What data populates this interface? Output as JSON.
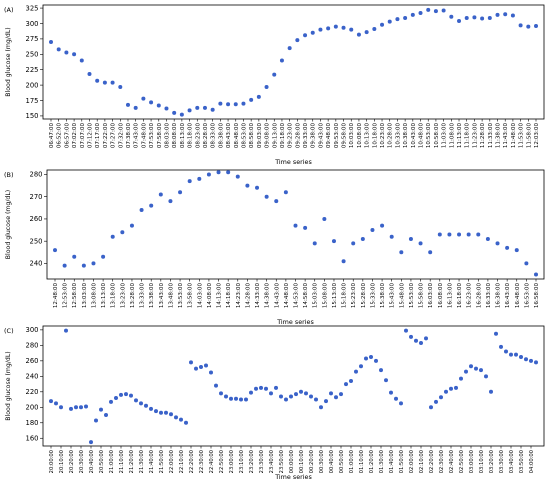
{
  "chart_data": [
    {
      "type": "scatter",
      "panel_label": "(A)",
      "xlabel": "Time series",
      "ylabel": "Blood glucose (mg/dL)",
      "ylim": [
        145,
        330
      ],
      "yticks": [
        150,
        175,
        200,
        225,
        250,
        275,
        300,
        325
      ],
      "grid": false,
      "x": [
        "06:47:00",
        "06:52:00",
        "06:57:00",
        "07:02:00",
        "07:07:00",
        "07:12:00",
        "07:17:00",
        "07:22:00",
        "07:27:00",
        "07:32:00",
        "07:38:00",
        "07:43:00",
        "07:48:00",
        "07:53:00",
        "07:58:00",
        "08:03:00",
        "08:08:00",
        "08:13:00",
        "08:18:00",
        "08:23:00",
        "08:28:00",
        "08:33:00",
        "08:38:00",
        "08:43:00",
        "08:48:00",
        "08:53:00",
        "08:58:00",
        "09:03:00",
        "09:08:00",
        "09:13:00",
        "09:18:00",
        "09:23:00",
        "09:28:00",
        "09:33:00",
        "09:38:00",
        "09:43:00",
        "09:48:00",
        "09:53:00",
        "09:58:00",
        "10:03:00",
        "10:08:00",
        "10:13:00",
        "10:18:00",
        "10:23:00",
        "10:28:00",
        "10:33:00",
        "10:38:00",
        "10:43:00",
        "10:48:00",
        "10:53:00",
        "10:58:00",
        "11:03:00",
        "11:08:00",
        "11:13:00",
        "11:18:00",
        "11:23:00",
        "11:28:00",
        "11:33:00",
        "11:38:00",
        "11:43:00",
        "11:48:00",
        "11:53:00",
        "11:58:00",
        "12:03:00"
      ],
      "xticks": [
        "06:47:00",
        "06:52:00",
        "06:57:00",
        "07:02:00",
        "07:07:00",
        "07:12:00",
        "07:17:00",
        "07:22:00",
        "07:27:00",
        "07:32:00",
        "07:38:00",
        "07:43:00",
        "07:48:00",
        "07:53:00",
        "07:58:00",
        "08:03:00",
        "08:08:00",
        "08:13:00",
        "08:18:00",
        "08:23:00",
        "08:28:00",
        "08:33:00",
        "08:38:00",
        "08:43:00",
        "08:48:00",
        "08:53:00",
        "08:58:00",
        "09:03:00",
        "09:08:00",
        "09:13:00",
        "09:18:00",
        "09:23:00",
        "09:28:00",
        "09:33:00",
        "09:38:00",
        "09:43:00",
        "09:48:00",
        "09:53:00",
        "09:58:00",
        "10:03:00",
        "10:08:00",
        "10:13:00",
        "10:18:00",
        "10:23:00",
        "10:28:00",
        "10:33:00",
        "10:38:00",
        "10:43:00",
        "10:48:00",
        "10:53:00",
        "10:58:00",
        "11:03:00",
        "11:08:00",
        "11:13:00",
        "11:18:00",
        "11:23:00",
        "11:28:00",
        "11:33:00",
        "11:38:00",
        "11:43:00",
        "11:48:00",
        "11:53:00",
        "11:58:00",
        "12:03:00"
      ],
      "y": [
        270,
        258,
        253,
        250,
        240,
        218,
        207,
        204,
        204,
        197,
        168,
        163,
        178,
        172,
        167,
        162,
        155,
        152,
        159,
        163,
        163,
        160,
        170,
        169,
        169,
        170,
        176,
        181,
        197,
        217,
        240,
        260,
        273,
        281,
        285,
        290,
        292,
        295,
        293,
        290,
        282,
        286,
        291,
        298,
        303,
        307,
        309,
        314,
        317,
        322,
        320,
        321,
        311,
        304,
        309,
        310,
        308,
        309,
        314,
        315,
        313,
        297,
        295,
        296
      ]
    },
    {
      "type": "scatter",
      "panel_label": "(B)",
      "xlabel": "Time series",
      "ylabel": "Blood glucose (mg/dL)",
      "ylim": [
        233,
        282
      ],
      "yticks": [
        240,
        250,
        260,
        270,
        280
      ],
      "grid": false,
      "x": [
        "12:48:00",
        "12:53:00",
        "12:58:00",
        "13:03:00",
        "13:08:00",
        "13:13:00",
        "13:18:00",
        "13:23:00",
        "13:28:00",
        "13:33:00",
        "13:38:00",
        "13:43:00",
        "13:48:00",
        "13:53:00",
        "13:58:00",
        "14:03:00",
        "14:08:00",
        "14:13:00",
        "14:18:00",
        "14:23:00",
        "14:28:00",
        "14:33:00",
        "14:38:00",
        "14:43:00",
        "14:48:00",
        "14:53:00",
        "14:58:00",
        "15:03:00",
        "15:08:00",
        "15:13:00",
        "15:18:00",
        "15:23:00",
        "15:28:00",
        "15:33:00",
        "15:38:00",
        "15:43:00",
        "15:48:00",
        "15:53:00",
        "15:58:00",
        "16:03:00",
        "16:08:00",
        "16:13:00",
        "16:18:00",
        "16:23:00",
        "16:28:00",
        "16:33:00",
        "16:38:00",
        "16:43:00",
        "16:48:00",
        "16:53:00",
        "16:58:00"
      ],
      "xticks": [
        "12:48:00",
        "12:53:00",
        "12:58:00",
        "13:03:00",
        "13:08:00",
        "13:13:00",
        "13:18:00",
        "13:23:00",
        "13:28:00",
        "13:33:00",
        "13:38:00",
        "13:43:00",
        "13:48:00",
        "13:53:00",
        "13:58:00",
        "14:03:00",
        "14:08:00",
        "14:13:00",
        "14:18:00",
        "14:23:00",
        "14:28:00",
        "14:33:00",
        "14:38:00",
        "14:43:00",
        "14:48:00",
        "14:53:00",
        "14:58:00",
        "15:03:00",
        "15:08:00",
        "15:13:00",
        "15:18:00",
        "15:23:00",
        "15:28:00",
        "15:33:00",
        "15:38:00",
        "15:43:00",
        "15:48:00",
        "15:53:00",
        "15:58:00",
        "16:03:00",
        "16:08:00",
        "16:13:00",
        "16:18:00",
        "16:23:00",
        "16:28:00",
        "16:33:00",
        "16:38:00",
        "16:43:00",
        "16:48:00",
        "16:53:00",
        "16:58:00"
      ],
      "y": [
        246,
        239,
        243,
        239,
        240,
        243,
        252,
        254,
        257,
        264,
        266,
        271,
        268,
        272,
        277,
        278,
        280,
        281,
        281,
        279,
        275,
        274,
        270,
        268,
        272,
        257,
        256,
        249,
        260,
        250,
        241,
        249,
        251,
        255,
        257,
        252,
        245,
        251,
        249,
        245,
        253,
        253,
        253,
        253,
        253,
        251,
        249,
        247,
        246,
        240,
        235
      ]
    },
    {
      "type": "scatter",
      "panel_label": "(C)",
      "xlabel": "Time series",
      "ylabel": "Blood glucose (mg/dL)",
      "ylim": [
        150,
        305
      ],
      "yticks": [
        160,
        180,
        200,
        220,
        240,
        260,
        280,
        300
      ],
      "grid": false,
      "x": [
        "20:00:00",
        "20:05:00",
        "20:10:00",
        "20:15:00",
        "20:20:00",
        "20:25:00",
        "20:30:00",
        "20:35:00",
        "20:40:00",
        "20:45:00",
        "20:50:00",
        "20:55:00",
        "21:00:00",
        "21:05:00",
        "21:10:00",
        "21:15:00",
        "21:20:00",
        "21:25:00",
        "21:30:00",
        "21:35:00",
        "21:40:00",
        "21:45:00",
        "21:50:00",
        "21:55:00",
        "22:00:00",
        "22:05:00",
        "22:10:00",
        "22:15:00",
        "22:20:00",
        "22:25:00",
        "22:30:00",
        "22:35:00",
        "22:40:00",
        "22:45:00",
        "22:50:00",
        "22:55:00",
        "23:00:00",
        "23:05:00",
        "23:10:00",
        "23:15:00",
        "23:20:00",
        "23:25:00",
        "23:30:00",
        "23:35:00",
        "23:40:00",
        "23:45:00",
        "23:50:00",
        "23:55:00",
        "00:00:00",
        "00:05:00",
        "00:10:00",
        "00:15:00",
        "00:20:00",
        "00:25:00",
        "00:30:00",
        "00:35:00",
        "00:40:00",
        "00:45:00",
        "00:50:00",
        "00:55:00",
        "01:00:00",
        "01:05:00",
        "01:10:00",
        "01:15:00",
        "01:20:00",
        "01:25:00",
        "01:30:00",
        "01:35:00",
        "01:40:00",
        "01:45:00",
        "01:50:00",
        "01:55:00",
        "02:00:00",
        "02:05:00",
        "02:10:00",
        "02:15:00",
        "02:20:00",
        "02:25:00",
        "02:30:00",
        "02:35:00",
        "02:40:00",
        "02:45:00",
        "02:50:00",
        "02:55:00",
        "03:00:00",
        "03:05:00",
        "03:10:00",
        "03:15:00",
        "03:20:00",
        "03:25:00",
        "03:30:00",
        "03:35:00",
        "03:40:00",
        "03:45:00",
        "03:50:00",
        "03:55:00",
        "04:00:00",
        "04:05:00"
      ],
      "xticks": [
        "20:00:00",
        "20:10:00",
        "20:20:00",
        "20:30:00",
        "20:40:00",
        "20:50:00",
        "21:00:00",
        "21:10:00",
        "21:20:00",
        "21:30:00",
        "21:40:00",
        "21:50:00",
        "22:00:00",
        "22:10:00",
        "22:20:00",
        "22:30:00",
        "22:40:00",
        "22:50:00",
        "23:00:00",
        "23:10:00",
        "23:20:00",
        "23:30:00",
        "23:40:00",
        "23:50:00",
        "00:00:00",
        "00:10:00",
        "00:20:00",
        "00:30:00",
        "00:40:00",
        "00:50:00",
        "01:00:00",
        "01:10:00",
        "01:20:00",
        "01:30:00",
        "01:40:00",
        "01:50:00",
        "02:00:00",
        "02:10:00",
        "02:20:00",
        "02:30:00",
        "02:40:00",
        "02:50:00",
        "03:00:00",
        "03:10:00",
        "03:20:00",
        "03:30:00",
        "03:40:00",
        "03:50:00",
        "04:00:00"
      ],
      "y": [
        208,
        205,
        200,
        299,
        198,
        200,
        200,
        201,
        155,
        183,
        197,
        190,
        207,
        212,
        216,
        217,
        215,
        209,
        205,
        202,
        198,
        195,
        193,
        193,
        191,
        187,
        184,
        180,
        258,
        250,
        252,
        254,
        245,
        228,
        218,
        214,
        211,
        211,
        210,
        210,
        219,
        224,
        225,
        224,
        218,
        225,
        214,
        210,
        214,
        217,
        220,
        218,
        214,
        210,
        200,
        208,
        218,
        213,
        217,
        230,
        234,
        246,
        253,
        263,
        265,
        260,
        248,
        235,
        219,
        211,
        205,
        299,
        291,
        286,
        283,
        289,
        200,
        207,
        213,
        220,
        224,
        225,
        237,
        246,
        253,
        250,
        248,
        240,
        220,
        295,
        278,
        272,
        268,
        268,
        265,
        262,
        260,
        258
      ]
    }
  ]
}
